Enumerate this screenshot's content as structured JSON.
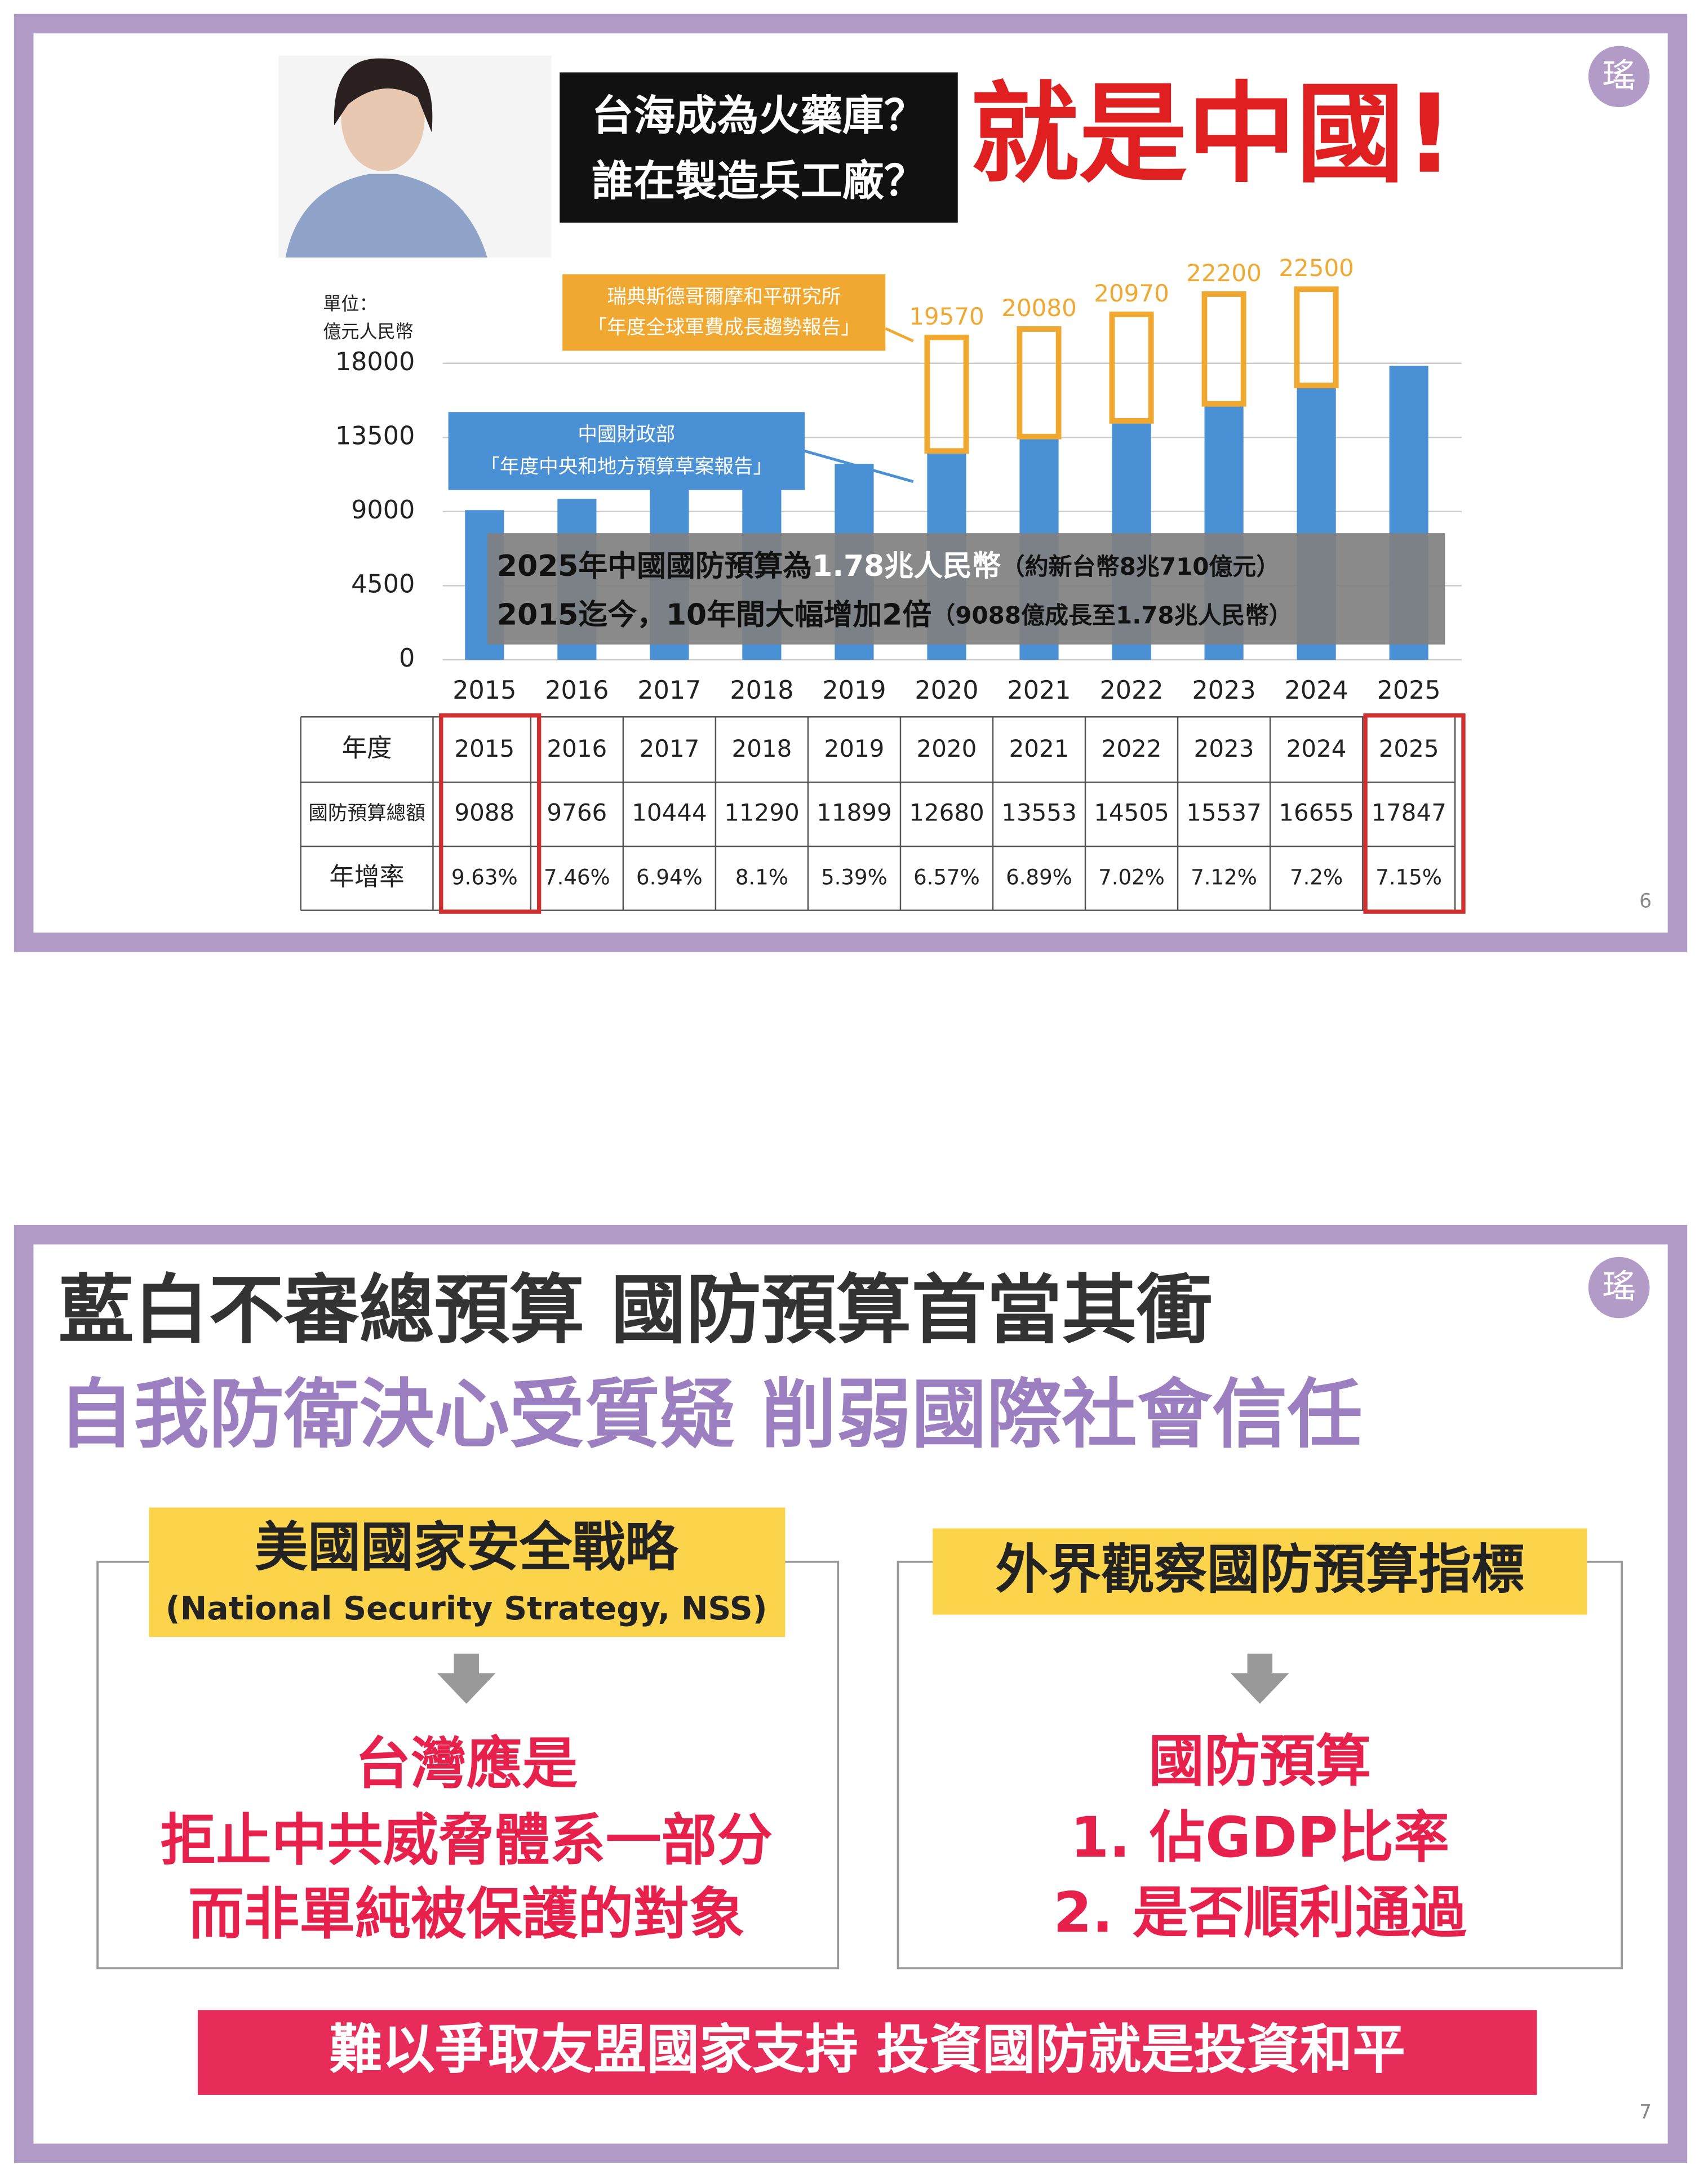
{
  "slides": [
    {
      "headline": [
        "台海成為火藥庫？",
        "誰在製造兵工廠？"
      ],
      "exclaim": "就是中國!",
      "logo": "瑤",
      "page": "6"
    },
    {
      "title": "藍白不審總預算 國防預算首當其衝",
      "subtitle": "自我防衛決心受質疑 削弱國際社會信任",
      "left": {
        "label": "美國國家安全戰略",
        "sublabel": "(National Security Strategy, NSS)",
        "lines": [
          "台灣應是",
          "拒止中共威脅體系一部分",
          "而非單純被保護的對象"
        ]
      },
      "right": {
        "label": "外界觀察國防預算指標",
        "lines": [
          "國防預算",
          "1. 佔GDP比率",
          "2. 是否順利通過"
        ]
      },
      "banner": "難以爭取友盟國家支持 投資國防就是投資和平",
      "logo": "瑤",
      "page": "7"
    }
  ],
  "chart_data": {
    "type": "bar",
    "unit": [
      "單位：",
      "億元人民幣"
    ],
    "categories": [
      "2015",
      "2016",
      "2017",
      "2018",
      "2019",
      "2020",
      "2021",
      "2022",
      "2023",
      "2024",
      "2025"
    ],
    "series": [
      {
        "color": "#4a90d4",
        "values": [
          9088,
          9766,
          10444,
          11290,
          11899,
          12680,
          13553,
          14505,
          15537,
          16655,
          17847
        ]
      },
      {
        "color": "#f0a830",
        "values": [
          null,
          null,
          null,
          null,
          null,
          19570,
          20080,
          20970,
          22200,
          22500,
          null
        ]
      }
    ],
    "sources": [
      [
        "中國財政部",
        "「年度中央和地方預算草案報告」"
      ],
      [
        "瑞典斯德哥爾摩和平研究所",
        "「年度全球軍費成長趨勢報告」"
      ]
    ],
    "note": [
      [
        "2025年中國國防預算為",
        "1.78兆人民幣",
        "（約新台幣8兆710億元）"
      ],
      [
        "2015迄今，10年間大幅增加2倍",
        "（9088億成長至1.78兆人民幣）"
      ]
    ],
    "ylim": [
      0,
      24000
    ],
    "yticks": [
      0,
      4500,
      9000,
      13500,
      18000
    ],
    "grid": true
  },
  "table": {
    "row_labels": [
      "年度",
      "國防預算總額",
      "年增率"
    ],
    "growth_rates": [
      "9.63%",
      "7.46%",
      "6.94%",
      "8.1%",
      "5.39%",
      "6.57%",
      "6.89%",
      "7.02%",
      "7.12%",
      "7.2%",
      "7.15%"
    ]
  }
}
